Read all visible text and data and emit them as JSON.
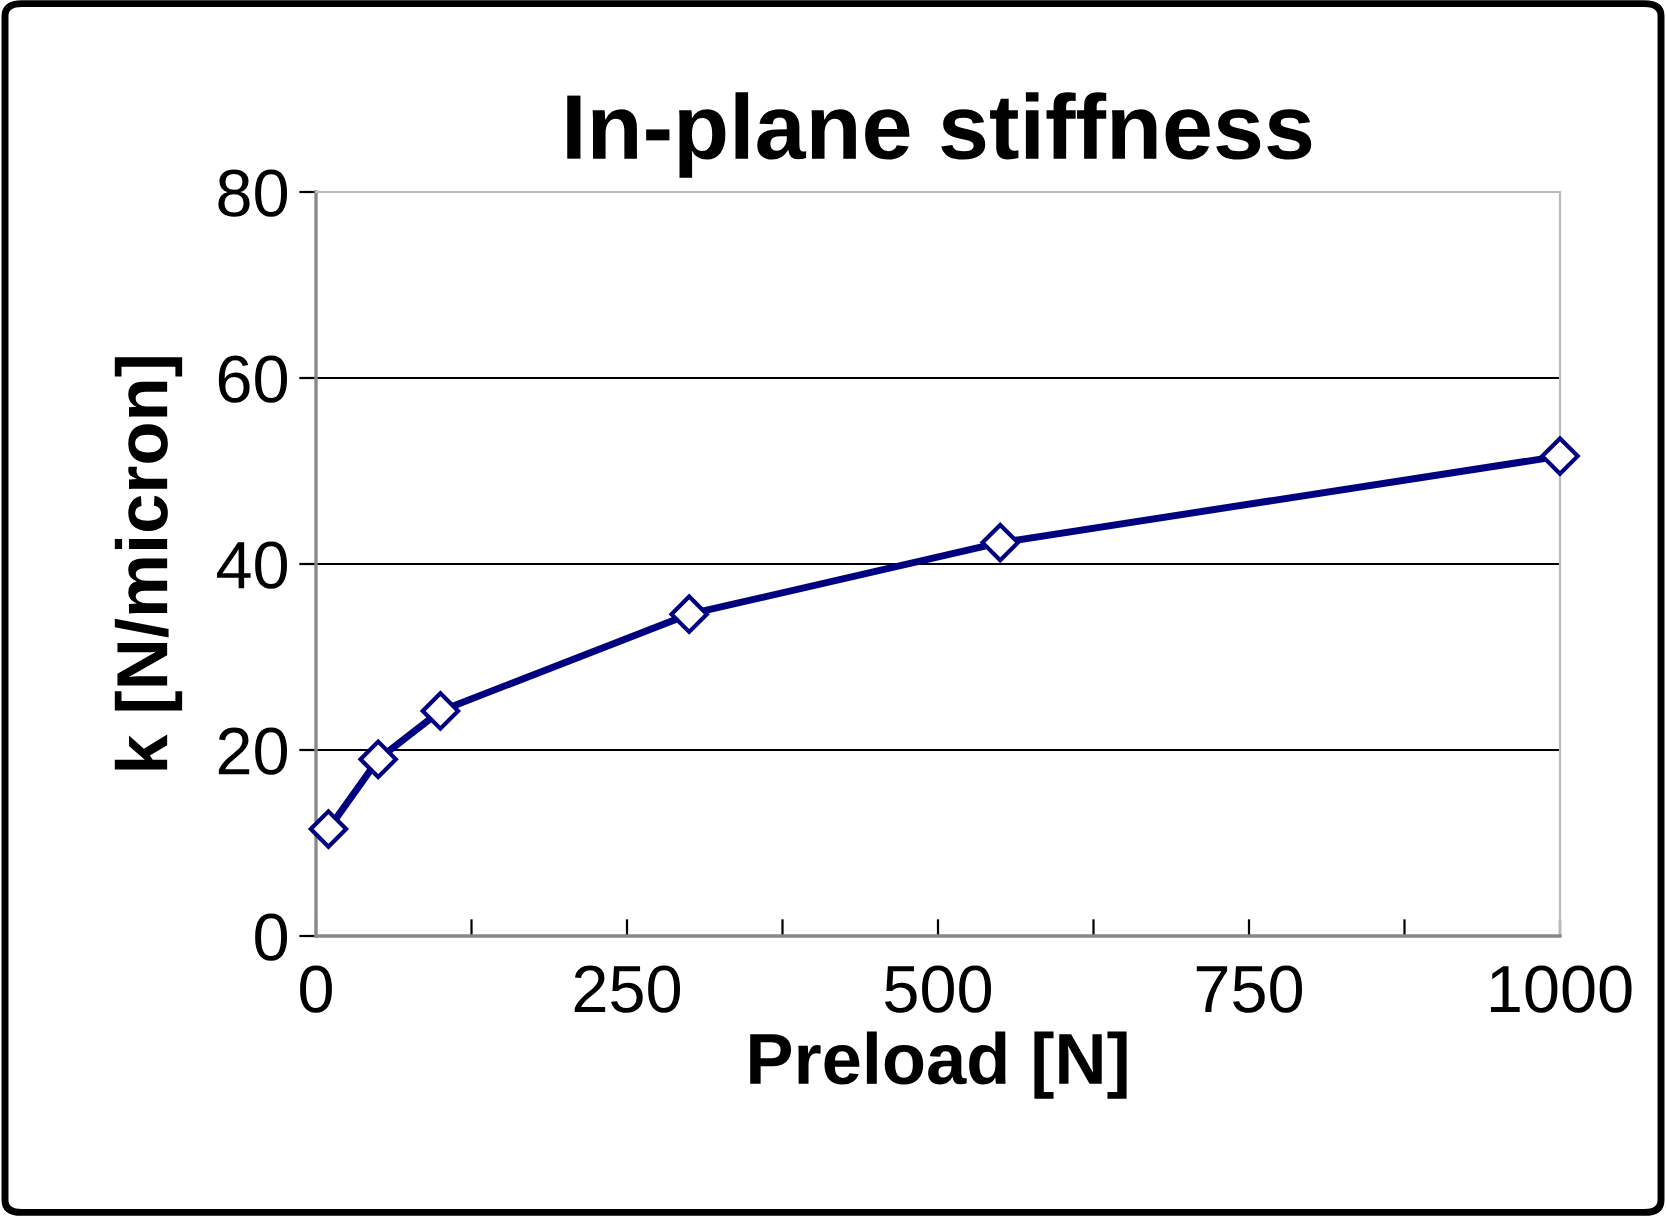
{
  "chart_data": {
    "type": "line",
    "title": "In-plane stiffness",
    "xlabel": "Preload [N]",
    "ylabel": "k [N/micron]",
    "x": [
      10,
      50,
      100,
      300,
      550,
      1000
    ],
    "series": [
      {
        "color": "#000080",
        "values": [
          11.5,
          19,
          24.2,
          34.6,
          42.3,
          51.6
        ]
      }
    ],
    "xlim": [
      0,
      1000
    ],
    "ylim": [
      0,
      80
    ],
    "xticks": [
      0,
      {
        "value": 125,
        "label": null
      },
      250,
      {
        "value": 375,
        "label": null
      },
      500,
      {
        "value": 625,
        "label": null
      },
      750,
      {
        "value": 875,
        "label": null
      },
      1000
    ],
    "yticks": [
      0,
      20,
      40,
      60,
      80
    ],
    "grid": "y",
    "marker": "diamond",
    "line_style": "solid",
    "legend": false
  }
}
